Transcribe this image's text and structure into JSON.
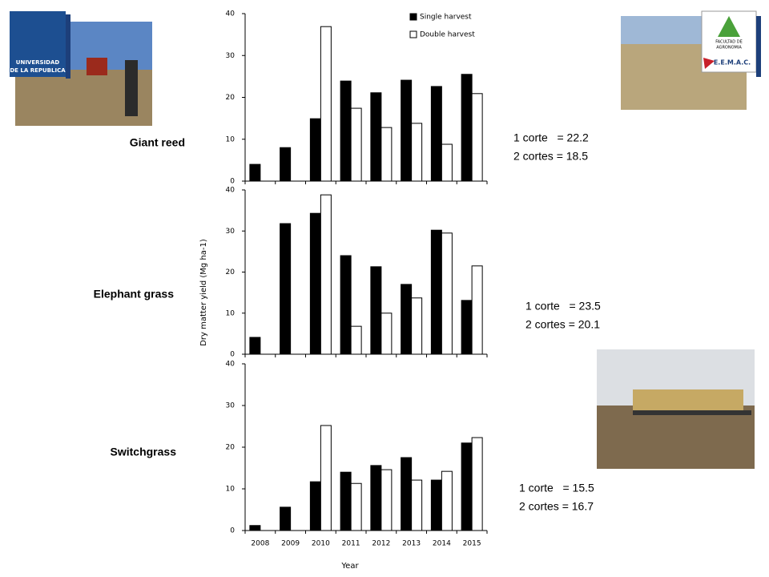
{
  "chart_data": [
    {
      "type": "bar",
      "title": "Giant reed",
      "series": [
        {
          "name": "Single harvest",
          "color": "#000000",
          "values": [
            4.0,
            8.0,
            14.9,
            23.9,
            21.1,
            24.1,
            22.6,
            25.5
          ]
        },
        {
          "name": "Double harvest",
          "color": "#ffffff",
          "values": [
            null,
            null,
            36.9,
            17.4,
            12.8,
            13.8,
            8.8,
            20.9
          ]
        }
      ],
      "ylim": [
        0,
        40
      ],
      "yticks": [
        0,
        10,
        20,
        30,
        40
      ],
      "legend": "upper right",
      "annotations": [
        "1 corte   = 22.2",
        "2 cortes = 18.5"
      ]
    },
    {
      "type": "bar",
      "title": "Elephant grass",
      "y_label": "Dry matter yield (Mg ha-1)",
      "series": [
        {
          "color": "#000000",
          "values": [
            4.1,
            31.8,
            34.3,
            24.0,
            21.3,
            17.0,
            30.2,
            13.1
          ]
        },
        {
          "color": "#ffffff",
          "values": [
            null,
            null,
            38.8,
            6.8,
            10.0,
            13.7,
            29.5,
            21.5
          ]
        }
      ],
      "ylim": [
        0,
        40
      ],
      "yticks": [
        0,
        10,
        20,
        30,
        40
      ],
      "annotations": [
        "1 corte   = 23.5",
        "2 cortes = 20.1"
      ]
    },
    {
      "type": "bar",
      "title": "Switchgrass",
      "x_label": "Year",
      "categories": [
        "2008",
        "2009",
        "2010",
        "2011",
        "2012",
        "2013",
        "2014",
        "2015"
      ],
      "series": [
        {
          "color": "#000000",
          "values": [
            1.2,
            5.6,
            11.7,
            14.0,
            15.6,
            17.5,
            12.1,
            21.0
          ]
        },
        {
          "color": "#ffffff",
          "values": [
            null,
            null,
            25.2,
            11.3,
            14.6,
            12.1,
            14.2,
            22.3
          ]
        }
      ],
      "ylim": [
        0,
        40
      ],
      "yticks": [
        0,
        10,
        20,
        30,
        40
      ],
      "annotations": [
        "1 corte   = 15.5",
        "2 cortes = 16.7"
      ]
    }
  ],
  "logos": {
    "university": [
      "UNIVERSIDAD",
      "DE LA REPUBLICA"
    ],
    "faculty": [
      "FACULTAD DE",
      "AGRONOMIA"
    ],
    "station": "E.E.M.A.C."
  }
}
